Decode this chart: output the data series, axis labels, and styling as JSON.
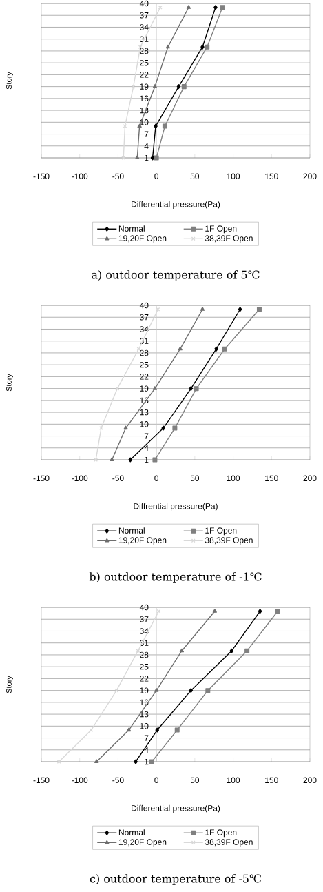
{
  "chart_data": [
    {
      "type": "line",
      "title": "a) outdoor temperature of 5℃",
      "xlabel": "Differential pressure(Pa)",
      "ylabel": "Story",
      "xlim": [
        -150,
        200
      ],
      "xticks": [
        -150,
        -100,
        -50,
        0,
        50,
        100,
        150,
        200
      ],
      "ylim": [
        1,
        40
      ],
      "yticks": [
        1,
        4,
        7,
        10,
        13,
        16,
        19,
        22,
        25,
        28,
        31,
        34,
        37,
        40
      ],
      "grid": "y",
      "legend": "bottom",
      "line_style": "solid",
      "series": [
        {
          "name": "Normal",
          "color": "#000000",
          "marker": "diamond",
          "x": [
            -5,
            -1,
            29,
            60,
            77
          ],
          "values": [
            1,
            9,
            19,
            29,
            39
          ]
        },
        {
          "name": "1F Open",
          "color": "#808080",
          "marker": "square",
          "x": [
            0,
            11,
            36,
            66,
            86
          ],
          "values": [
            1,
            9,
            19,
            29,
            39
          ]
        },
        {
          "name": "19,20F Open",
          "color": "#6e6e6e",
          "marker": "triangle",
          "x": [
            -25,
            -22,
            -2,
            15,
            42
          ],
          "values": [
            1,
            9,
            19,
            29,
            39
          ]
        },
        {
          "name": "38,39F Open",
          "color": "#d9d9d9",
          "marker": "cross",
          "x": [
            -43,
            -41,
            -30,
            -21,
            5
          ],
          "values": [
            1,
            9,
            19,
            29,
            39
          ]
        }
      ]
    },
    {
      "type": "line",
      "title": "b) outdoor temperature of -1℃",
      "xlabel": "Diffrential pressure(Pa)",
      "ylabel": "Story",
      "xlim": [
        -150,
        200
      ],
      "xticks": [
        -150,
        -100,
        -50,
        0,
        50,
        100,
        150,
        200
      ],
      "ylim": [
        1,
        40
      ],
      "yticks": [
        1,
        4,
        7,
        10,
        13,
        16,
        19,
        22,
        25,
        28,
        31,
        34,
        37,
        40
      ],
      "grid": "y",
      "legend": "bottom",
      "line_style": "solid",
      "series": [
        {
          "name": "Normal",
          "color": "#000000",
          "marker": "diamond",
          "x": [
            -34,
            9,
            45,
            78,
            109
          ],
          "values": [
            1,
            9,
            19,
            29,
            39
          ]
        },
        {
          "name": "1F Open",
          "color": "#808080",
          "marker": "square",
          "x": [
            -2,
            24,
            52,
            89,
            134
          ],
          "values": [
            1,
            9,
            19,
            29,
            39
          ]
        },
        {
          "name": "19,20F Open",
          "color": "#6e6e6e",
          "marker": "triangle",
          "x": [
            -58,
            -40,
            -2,
            31,
            60
          ],
          "values": [
            1,
            9,
            19,
            29,
            39
          ]
        },
        {
          "name": "38,39F Open",
          "color": "#d9d9d9",
          "marker": "cross",
          "x": [
            -79,
            -72,
            -51,
            -23,
            2
          ],
          "values": [
            1,
            9,
            19,
            29,
            39
          ]
        }
      ]
    },
    {
      "type": "line",
      "title": "c) outdoor temperature of -5℃",
      "xlabel": "Differential pressure(Pa)",
      "ylabel": "Story",
      "xlim": [
        -150,
        200
      ],
      "xticks": [
        -150,
        -100,
        -50,
        0,
        50,
        100,
        150,
        200
      ],
      "ylim": [
        1,
        40
      ],
      "yticks": [
        1,
        4,
        7,
        10,
        13,
        16,
        19,
        22,
        25,
        28,
        31,
        34,
        37,
        40
      ],
      "grid": "y",
      "legend": "bottom",
      "line_style": "solid",
      "series": [
        {
          "name": "Normal",
          "color": "#000000",
          "marker": "diamond",
          "x": [
            -27,
            1,
            45,
            98,
            135
          ],
          "values": [
            1,
            9,
            19,
            29,
            39
          ]
        },
        {
          "name": "1F Open",
          "color": "#808080",
          "marker": "square",
          "x": [
            -6,
            27,
            67,
            118,
            158
          ],
          "values": [
            1,
            9,
            19,
            29,
            39
          ]
        },
        {
          "name": "19,20F Open",
          "color": "#6e6e6e",
          "marker": "triangle",
          "x": [
            -78,
            -36,
            0,
            33,
            76
          ],
          "values": [
            1,
            9,
            19,
            29,
            39
          ]
        },
        {
          "name": "38,39F Open",
          "color": "#d9d9d9",
          "marker": "cross",
          "x": [
            -127,
            -85,
            -52,
            -24,
            3
          ],
          "values": [
            1,
            9,
            19,
            29,
            39
          ]
        }
      ]
    }
  ]
}
